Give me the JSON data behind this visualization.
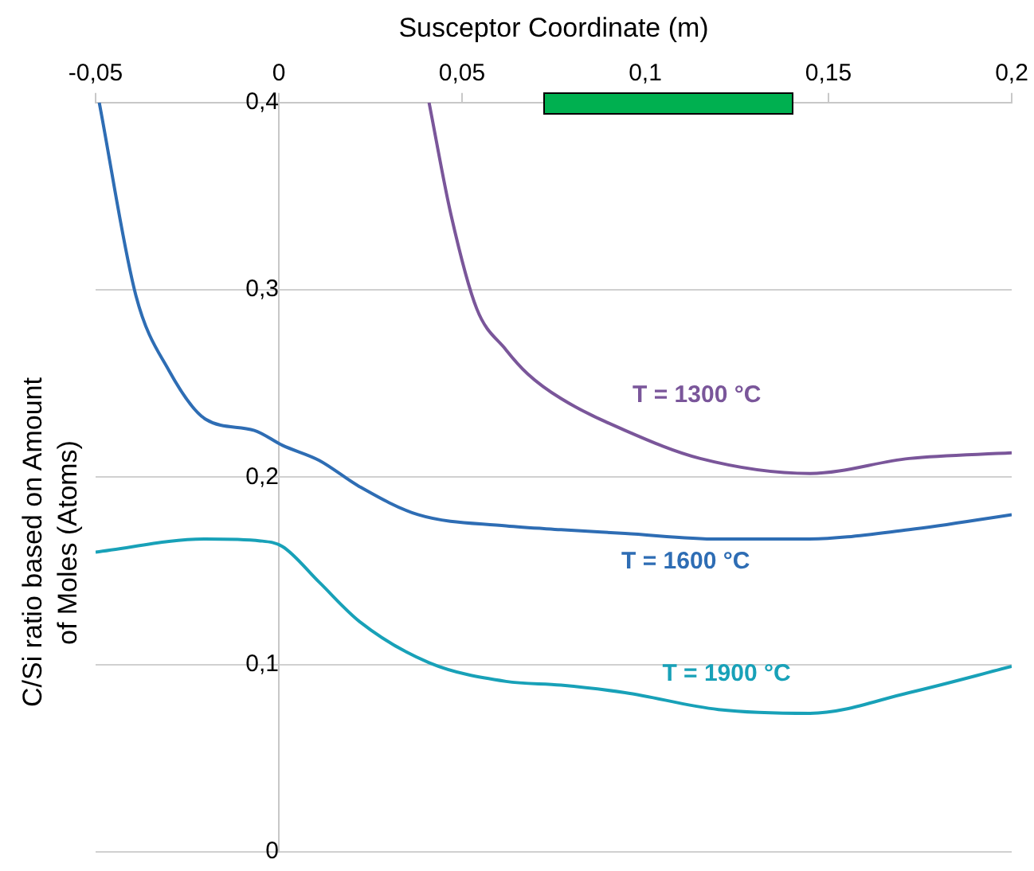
{
  "chart_data": {
    "type": "line",
    "xlabel": "Susceptor Coordinate (m)",
    "ylabel": "C/Si ratio based on Amount  of Moles (Atoms)",
    "xlim": [
      -0.05,
      0.2
    ],
    "xticks": [
      {
        "value": -0.05,
        "label": "-0,05"
      },
      0,
      {
        "value": 0.05,
        "label": "0,05"
      },
      {
        "value": 0.1,
        "label": "0,1"
      },
      {
        "value": 0.15,
        "label": "0,15"
      },
      {
        "value": 0.2,
        "label": "0,2"
      }
    ],
    "ylim": [
      0,
      0.4
    ],
    "yticks": [
      0,
      {
        "value": 0.1,
        "label": "0,1"
      },
      {
        "value": 0.2,
        "label": "0,2"
      },
      {
        "value": 0.3,
        "label": "0,3"
      },
      {
        "value": 0.4,
        "label": "0,4"
      }
    ],
    "grid": "y",
    "legend": false,
    "marker": "none",
    "line_style": "solid",
    "series": [
      {
        "name": "T = 1300 °C",
        "color": "#7a569a",
        "x": [
          0.041,
          0.047,
          0.054,
          0.062,
          0.068,
          0.077,
          0.0945,
          0.115,
          0.145,
          0.172,
          0.2
        ],
        "values": [
          0.4,
          0.34,
          0.29,
          0.268,
          0.255,
          0.242,
          0.225,
          0.21,
          0.202,
          0.21,
          0.213
        ]
      },
      {
        "name": "T = 1600 °C",
        "color": "#2e6db4",
        "x": [
          -0.049,
          -0.039,
          -0.03,
          -0.02,
          -0.0067,
          0.001,
          0.011,
          0.022,
          0.038,
          0.062,
          0.077,
          0.0945,
          0.12,
          0.1435,
          0.172,
          0.2
        ],
        "values": [
          0.4,
          0.297,
          0.257,
          0.231,
          0.225,
          0.217,
          0.209,
          0.195,
          0.18,
          0.174,
          0.172,
          0.17,
          0.167,
          0.167,
          0.172,
          0.18
        ]
      },
      {
        "name": "T = 1900 °C",
        "color": "#18a1b8",
        "x": [
          -0.05,
          -0.02,
          -0.005,
          0.001,
          0.011,
          0.022,
          0.041,
          0.062,
          0.077,
          0.0945,
          0.12,
          0.145,
          0.172,
          0.2
        ],
        "values": [
          0.16,
          0.167,
          0.166,
          0.163,
          0.144,
          0.123,
          0.101,
          0.091,
          0.089,
          0.085,
          0.076,
          0.074,
          0.085,
          0.099
        ]
      }
    ]
  }
}
